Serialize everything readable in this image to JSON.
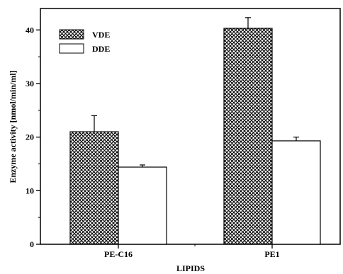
{
  "chart_data": {
    "type": "bar",
    "categories": [
      "PE-C16",
      "PE1"
    ],
    "series": [
      {
        "name": "VDE",
        "values": [
          21.0,
          40.3
        ],
        "errors": [
          3.0,
          2.0
        ],
        "fill": "crosshatch"
      },
      {
        "name": "DDE",
        "values": [
          14.4,
          19.3
        ],
        "errors": [
          0.4,
          0.7
        ],
        "fill": "white"
      }
    ],
    "xlabel": "LIPIDS",
    "ylabel": "Enzyme activity [nmol/min/ml]",
    "ylim": [
      0,
      44
    ],
    "yticks": [
      0,
      10,
      20,
      30,
      40
    ],
    "legend_position": "top-left",
    "grid": false,
    "colors": {
      "axis": "#000000",
      "hatch": "#000000",
      "background": "#ffffff"
    }
  }
}
